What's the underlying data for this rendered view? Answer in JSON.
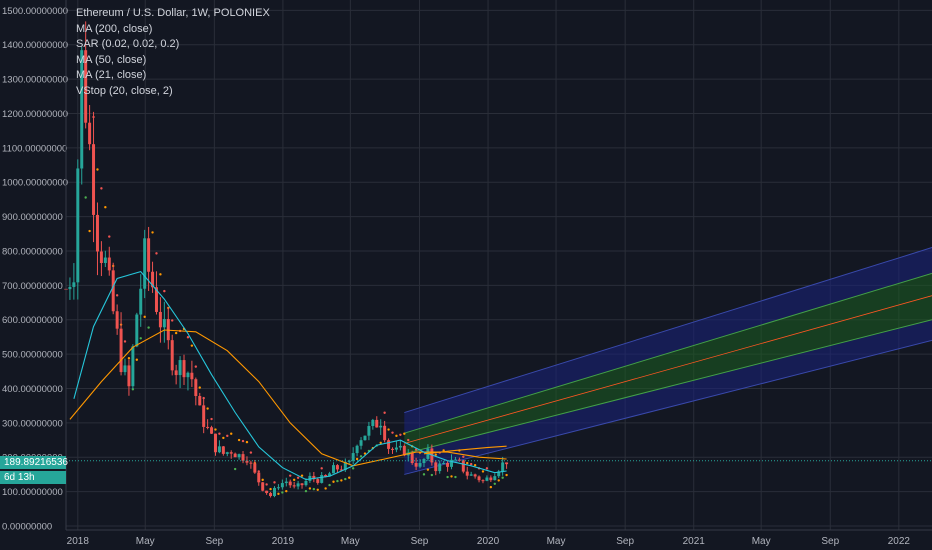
{
  "legend": {
    "title": "Ethereum / U.S. Dollar, 1W, POLONIEX",
    "indicators": [
      "MA (200, close)",
      "SAR (0.02, 0.02, 0.2)",
      "MA (50, close)",
      "MA (21, close)",
      "VStop (20, close, 2)"
    ]
  },
  "price_tag": {
    "price": "189.89216536",
    "countdown": "6d 13h"
  },
  "colors": {
    "background": "#131722",
    "grid": "#2a2e39",
    "up": "#26a69a",
    "down": "#ef5350",
    "ma21": "#26c6da",
    "ma50": "#ff9800",
    "sar": "#ff9800",
    "vstop_up": "#4caf50",
    "vstop_down": "#ef5350",
    "channel_outer": "#1a237e",
    "channel_inner": "#1b5e20",
    "channel_mid": "#ff5722"
  },
  "chart_data": {
    "type": "candlestick",
    "title": "Ethereum / U.S. Dollar, 1W, POLONIEX",
    "y_tick_labels": [
      "0.00000000",
      "100.00000000",
      "200.00000000",
      "300.00000000",
      "400.00000000",
      "500.00000000",
      "600.00000000",
      "700.00000000",
      "800.00000000",
      "900.00000000",
      "1000.00000000",
      "1100.00000000",
      "1200.00000000",
      "1300.00000000",
      "1400.00000000",
      "1500.00000000"
    ],
    "x_tick_labels": [
      "2018",
      "May",
      "Sep",
      "2019",
      "May",
      "Sep",
      "2020",
      "May",
      "Sep",
      "2021",
      "May",
      "Sep",
      "2022"
    ],
    "x_tick_dates": [
      "2018-01-01",
      "2018-05-01",
      "2018-09-01",
      "2019-01-01",
      "2019-05-01",
      "2019-09-01",
      "2020-01-01",
      "2020-05-01",
      "2020-09-01",
      "2021-01-01",
      "2021-05-01",
      "2021-09-01",
      "2022-01-01"
    ],
    "x_range": [
      "2017-12-11",
      "2022-03-01"
    ],
    "ylim": [
      0,
      1530
    ],
    "last_price": 189.89216536,
    "price_series": [
      [
        "2017-12-11",
        690
      ],
      [
        "2017-12-25",
        760
      ],
      [
        "2018-01-08",
        1350
      ],
      [
        "2018-01-22",
        1100
      ],
      [
        "2018-02-05",
        850
      ],
      [
        "2018-02-19",
        760
      ],
      [
        "2018-03-05",
        620
      ],
      [
        "2018-03-19",
        480
      ],
      [
        "2018-04-02",
        400
      ],
      [
        "2018-04-16",
        620
      ],
      [
        "2018-04-30",
        780
      ],
      [
        "2018-05-14",
        700
      ],
      [
        "2018-05-28",
        600
      ],
      [
        "2018-06-11",
        520
      ],
      [
        "2018-06-25",
        460
      ],
      [
        "2018-07-09",
        470
      ],
      [
        "2018-07-23",
        430
      ],
      [
        "2018-08-06",
        330
      ],
      [
        "2018-08-20",
        280
      ],
      [
        "2018-09-03",
        230
      ],
      [
        "2018-09-17",
        210
      ],
      [
        "2018-10-01",
        220
      ],
      [
        "2018-10-15",
        205
      ],
      [
        "2018-10-29",
        200
      ],
      [
        "2018-11-12",
        150
      ],
      [
        "2018-11-26",
        110
      ],
      [
        "2018-12-10",
        88
      ],
      [
        "2018-12-24",
        120
      ],
      [
        "2019-01-07",
        130
      ],
      [
        "2019-01-21",
        110
      ],
      [
        "2019-02-04",
        120
      ],
      [
        "2019-02-18",
        140
      ],
      [
        "2019-03-04",
        135
      ],
      [
        "2019-03-18",
        140
      ],
      [
        "2019-04-01",
        165
      ],
      [
        "2019-04-15",
        170
      ],
      [
        "2019-04-29",
        180
      ],
      [
        "2019-05-13",
        250
      ],
      [
        "2019-05-27",
        270
      ],
      [
        "2019-06-10",
        290
      ],
      [
        "2019-06-24",
        310
      ],
      [
        "2019-07-08",
        230
      ],
      [
        "2019-07-22",
        215
      ],
      [
        "2019-08-05",
        220
      ],
      [
        "2019-08-19",
        190
      ],
      [
        "2019-09-02",
        175
      ],
      [
        "2019-09-16",
        210
      ],
      [
        "2019-09-30",
        170
      ],
      [
        "2019-10-14",
        180
      ],
      [
        "2019-10-28",
        185
      ],
      [
        "2019-11-11",
        180
      ],
      [
        "2019-11-25",
        150
      ],
      [
        "2019-12-09",
        145
      ],
      [
        "2019-12-23",
        130
      ],
      [
        "2020-01-06",
        145
      ],
      [
        "2020-01-20",
        170
      ],
      [
        "2020-02-03",
        190
      ]
    ],
    "ma21": [
      [
        "2017-12-25",
        370
      ],
      [
        "2018-01-29",
        580
      ],
      [
        "2018-03-12",
        720
      ],
      [
        "2018-04-23",
        740
      ],
      [
        "2018-06-04",
        660
      ],
      [
        "2018-07-16",
        560
      ],
      [
        "2018-08-27",
        440
      ],
      [
        "2018-10-08",
        330
      ],
      [
        "2018-11-19",
        230
      ],
      [
        "2018-12-31",
        170
      ],
      [
        "2019-02-11",
        135
      ],
      [
        "2019-03-25",
        145
      ],
      [
        "2019-05-06",
        175
      ],
      [
        "2019-06-17",
        235
      ],
      [
        "2019-07-29",
        250
      ],
      [
        "2019-09-09",
        215
      ],
      [
        "2019-10-21",
        190
      ],
      [
        "2019-12-02",
        175
      ],
      [
        "2020-01-13",
        155
      ],
      [
        "2020-02-03",
        160
      ]
    ],
    "ma50": [
      [
        "2017-12-18",
        310
      ],
      [
        "2018-02-12",
        420
      ],
      [
        "2018-04-09",
        520
      ],
      [
        "2018-06-04",
        570
      ],
      [
        "2018-07-30",
        565
      ],
      [
        "2018-09-24",
        510
      ],
      [
        "2018-11-19",
        420
      ],
      [
        "2019-01-14",
        300
      ],
      [
        "2019-03-11",
        210
      ],
      [
        "2019-05-06",
        175
      ],
      [
        "2019-07-01",
        195
      ],
      [
        "2019-08-26",
        215
      ],
      [
        "2019-10-21",
        215
      ],
      [
        "2019-12-16",
        200
      ],
      [
        "2020-02-03",
        195
      ]
    ],
    "ma200": [
      [
        "2019-09-09",
        210
      ],
      [
        "2019-11-04",
        220
      ],
      [
        "2019-12-30",
        228
      ],
      [
        "2020-02-03",
        232
      ]
    ],
    "channel": {
      "start_date": "2019-08-05",
      "end_date": "2022-03-01",
      "outer_upper": [
        330,
        810
      ],
      "inner_upper": [
        270,
        735
      ],
      "mid": [
        240,
        670
      ],
      "inner_lower": [
        210,
        600
      ],
      "outer_lower": [
        150,
        540
      ]
    }
  }
}
